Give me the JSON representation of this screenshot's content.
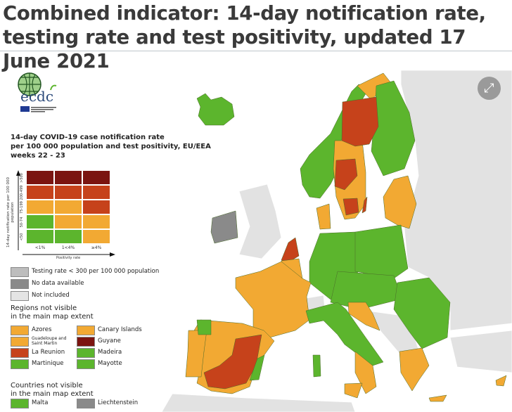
{
  "title": "Combined indicator: 14-day notification rate, testing rate and test positivity, updated 17 June 2021",
  "logo": {
    "text": "ecdc",
    "subtitle": "EUROPEAN CENTRE FOR DISEASE PREVENTION AND CONTROL"
  },
  "colors": {
    "dark_red": "#7b1410",
    "red": "#c6421b",
    "orange": "#f2a933",
    "green": "#5cb52d",
    "testing_low": "#bdbdbd",
    "no_data": "#8a8a8a",
    "not_included": "#e4e4e4"
  },
  "legend": {
    "title_lines": [
      "14-day COVID-19 case notification rate",
      "per 100 000 population and test positivity, EU/EEA",
      "weeks 22 - 23"
    ],
    "y_axis_label": "14-day notification rate per 100 000 population",
    "x_axis_label": "Positivity rate",
    "y_ticks": [
      ">500",
      "200-499",
      "75-199",
      "50-74",
      "<50"
    ],
    "x_ticks": [
      "<1%",
      "1<4%",
      "≥4%"
    ],
    "matrix": [
      [
        "dark_red",
        "dark_red",
        "dark_red"
      ],
      [
        "red",
        "red",
        "red"
      ],
      [
        "orange",
        "orange",
        "red"
      ],
      [
        "green",
        "orange",
        "orange"
      ],
      [
        "green",
        "green",
        "orange"
      ]
    ],
    "status": [
      {
        "label": "Testing rate < 300 per 100 000 population",
        "color": "testing_low"
      },
      {
        "label": "No data available",
        "color": "no_data"
      },
      {
        "label": "Not included",
        "color": "not_included"
      }
    ],
    "regions_heading": [
      "Regions not visible",
      "in the main map extent"
    ],
    "regions": [
      {
        "label": "Azores",
        "color": "orange"
      },
      {
        "label": "Canary Islands",
        "color": "orange"
      },
      {
        "label": "Guadeloupe and Saint Martin",
        "color": "orange"
      },
      {
        "label": "Guyane",
        "color": "dark_red"
      },
      {
        "label": "La Reunion",
        "color": "red"
      },
      {
        "label": "Madeira",
        "color": "green"
      },
      {
        "label": "Martinique",
        "color": "green"
      },
      {
        "label": "Mayotte",
        "color": "green"
      }
    ],
    "countries_heading": [
      "Countries not visible",
      "in the main map extent"
    ],
    "countries": [
      {
        "label": "Malta",
        "color": "green"
      },
      {
        "label": "Liechtenstein",
        "color": "no_data"
      }
    ]
  },
  "map_regions": [
    {
      "name": "iceland",
      "color": "green"
    },
    {
      "name": "norway",
      "color": "green"
    },
    {
      "name": "norway-north",
      "color": "orange"
    },
    {
      "name": "finland",
      "color": "green"
    },
    {
      "name": "sweden",
      "color": "orange"
    },
    {
      "name": "sweden-north",
      "color": "red"
    },
    {
      "name": "sweden-central",
      "color": "red"
    },
    {
      "name": "sweden-south",
      "color": "red"
    },
    {
      "name": "gotland",
      "color": "red"
    },
    {
      "name": "baltics",
      "color": "orange"
    },
    {
      "name": "ireland",
      "color": "no_data"
    },
    {
      "name": "denmark",
      "color": "orange"
    },
    {
      "name": "germany",
      "color": "green"
    },
    {
      "name": "poland",
      "color": "green"
    },
    {
      "name": "central-europe",
      "color": "green"
    },
    {
      "name": "romania-bulgaria",
      "color": "green"
    },
    {
      "name": "netherlands",
      "color": "red"
    },
    {
      "name": "belgium-luxembourg",
      "color": "orange"
    },
    {
      "name": "france",
      "color": "orange"
    },
    {
      "name": "italy",
      "color": "green"
    },
    {
      "name": "italy-south",
      "color": "orange"
    },
    {
      "name": "sardinia",
      "color": "green"
    },
    {
      "name": "sicily",
      "color": "orange"
    },
    {
      "name": "spain",
      "color": "orange"
    },
    {
      "name": "spain-central",
      "color": "red"
    },
    {
      "name": "portugal",
      "color": "orange"
    },
    {
      "name": "galicia",
      "color": "green"
    },
    {
      "name": "valencia",
      "color": "green"
    },
    {
      "name": "croatia-slovenia",
      "color": "orange"
    },
    {
      "name": "greece",
      "color": "orange"
    },
    {
      "name": "crete",
      "color": "orange"
    },
    {
      "name": "cyprus",
      "color": "orange"
    }
  ]
}
